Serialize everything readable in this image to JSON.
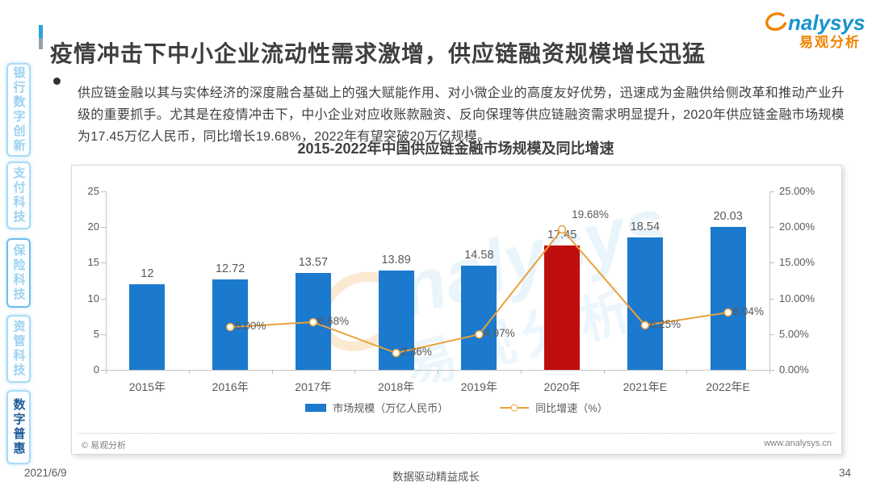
{
  "page": {
    "title": "疫情冲击下中小企业流动性需求激增，供应链融资规模增长迅猛",
    "date": "2021/6/9",
    "slogan": "数据驱动精益成长",
    "page_number": "34"
  },
  "logo": {
    "wordmark": "nalysys",
    "cn": "易观分析"
  },
  "watermark": {
    "wordmark": "nalysys",
    "cn": "易观分析"
  },
  "sidebar": {
    "items": [
      {
        "id": "bank-digital-innovation",
        "label": "银行数字创新",
        "active": false,
        "emphasized": false
      },
      {
        "id": "payment-tech",
        "label": "支付科技",
        "active": false,
        "emphasized": false
      },
      {
        "id": "insurance-tech",
        "label": "保险科技",
        "active": false,
        "emphasized": true
      },
      {
        "id": "asset-mgmt-tech",
        "label": "资管科技",
        "active": false,
        "emphasized": false
      },
      {
        "id": "digital-inclusion",
        "label": "数字普惠",
        "active": true,
        "emphasized": false
      }
    ]
  },
  "bullet": {
    "text": "供应链金融以其与实体经济的深度融合基础上的强大赋能作用、对小微企业的高度友好优势，迅速成为金融供给侧改革和推动产业升级的重要抓手。尤其是在疫情冲击下，中小企业对应收账款融资、反向保理等供应链融资需求明显提升，2020年供应链金融市场规模为17.45万亿人民币，同比增长19.68%，2022年有望突破20万亿规模。"
  },
  "chart_card": {
    "source_left": "© 易观分析",
    "source_right": "www.analysys.cn"
  },
  "chart_data": {
    "type": "bar",
    "subtype": "bar+line combo",
    "title": "2015-2022年中国供应链金融市场规模及同比增速",
    "categories": [
      "2015年",
      "2016年",
      "2017年",
      "2018年",
      "2019年",
      "2020年",
      "2021年E",
      "2022年E"
    ],
    "series": [
      {
        "name": "市场规模（万亿人民币）",
        "type": "bar",
        "values": [
          12,
          12.72,
          13.57,
          13.89,
          14.58,
          17.45,
          18.54,
          20.03
        ],
        "labels": [
          "12",
          "12.72",
          "13.57",
          "13.89",
          "14.58",
          "17.45",
          "18.54",
          "20.03"
        ],
        "bar_colors": [
          "#1B79CE",
          "#1B79CE",
          "#1B79CE",
          "#1B79CE",
          "#1B79CE",
          "#C00D0D",
          "#1B79CE",
          "#1B79CE"
        ]
      },
      {
        "name": "同比增速（%）",
        "type": "line",
        "values": [
          null,
          6.0,
          6.68,
          2.36,
          4.97,
          19.68,
          6.25,
          8.04
        ],
        "labels": [
          null,
          "6.00%",
          "6.68%",
          "2.36%",
          "4.97%",
          "19.68%",
          "6.25%",
          "8.04%"
        ],
        "color": "#E9A13B"
      }
    ],
    "left_axis": {
      "min": 0,
      "max": 25,
      "ticks": [
        "0",
        "5",
        "10",
        "15",
        "20",
        "25"
      ]
    },
    "right_axis": {
      "min": 0,
      "max": 25,
      "ticks": [
        "0.00%",
        "5.00%",
        "10.00%",
        "15.00%",
        "20.00%",
        "25.00%"
      ]
    },
    "legend": [
      {
        "label": "市场规模（万亿人民币）",
        "swatch": "bar",
        "color": "#1B79CE"
      },
      {
        "label": "同比增速（%）",
        "swatch": "line",
        "color": "#E9A13B"
      }
    ],
    "grid": false,
    "legend_position": "bottom"
  }
}
